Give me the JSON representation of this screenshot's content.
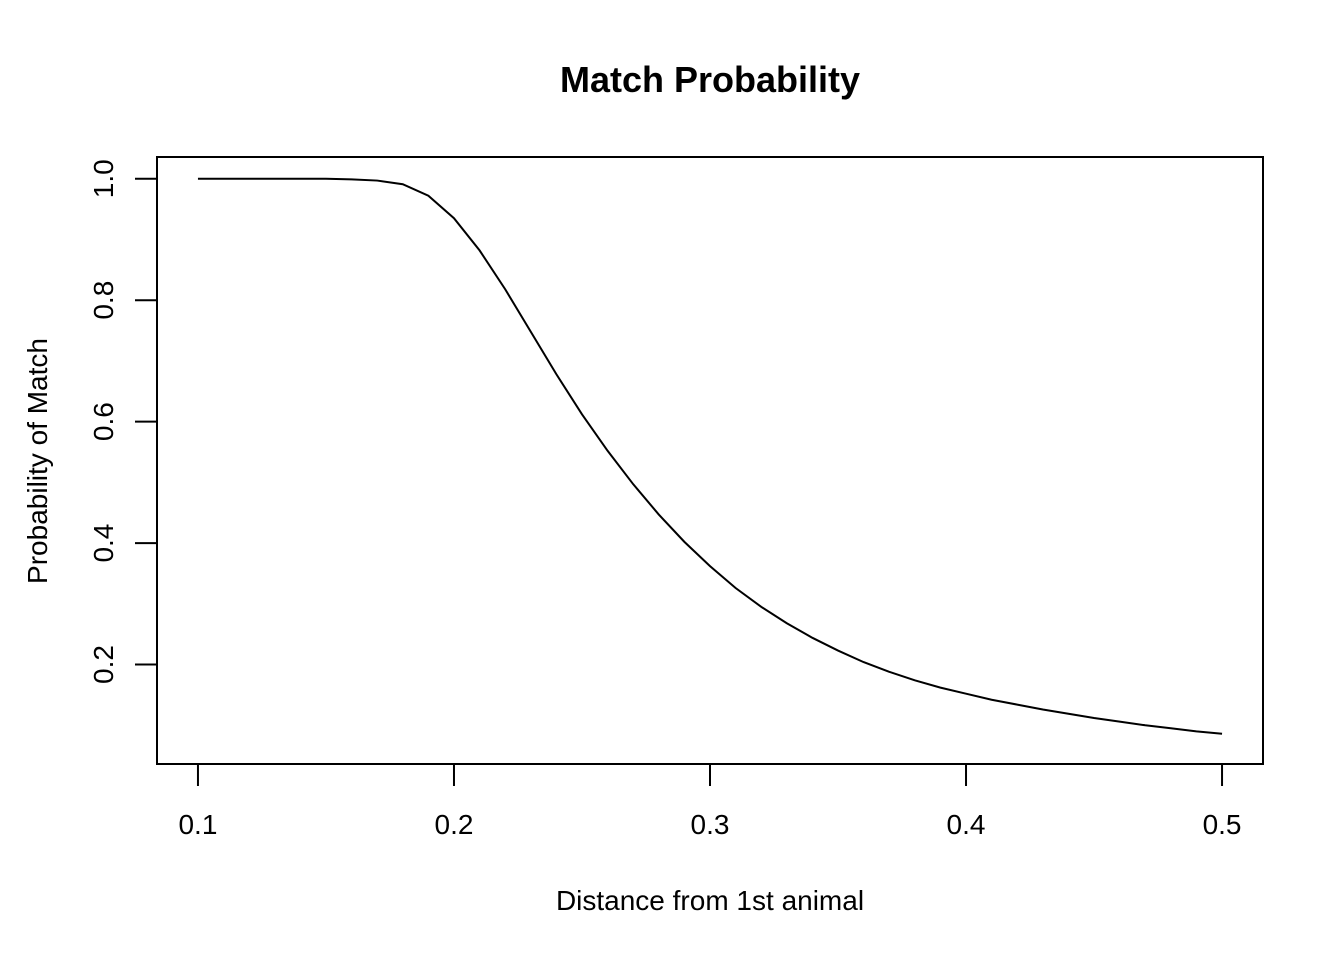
{
  "chart_data": {
    "type": "line",
    "title": "Match Probability",
    "xlabel": "Distance from 1st animal",
    "ylabel": "Probability of Match",
    "xlim": [
      0.084,
      0.516
    ],
    "ylim": [
      0.0362,
      1.0358
    ],
    "x_ticks": [
      0.1,
      0.2,
      0.3,
      0.4,
      0.5
    ],
    "x_tick_labels": [
      "0.1",
      "0.2",
      "0.3",
      "0.4",
      "0.5"
    ],
    "y_ticks": [
      0.2,
      0.4,
      0.6,
      0.8,
      1.0
    ],
    "y_tick_labels": [
      "0.2",
      "0.4",
      "0.6",
      "0.8",
      "1.0"
    ],
    "grid": false,
    "legend": "none",
    "line_color": "#000000",
    "series": [
      {
        "x": [
          0.1,
          0.11,
          0.12,
          0.13,
          0.14,
          0.15,
          0.16,
          0.17,
          0.18,
          0.19,
          0.2,
          0.21,
          0.22,
          0.23,
          0.24,
          0.25,
          0.26,
          0.27,
          0.28,
          0.29,
          0.3,
          0.31,
          0.32,
          0.33,
          0.34,
          0.35,
          0.36,
          0.37,
          0.38,
          0.39,
          0.4,
          0.41,
          0.42,
          0.43,
          0.44,
          0.45,
          0.46,
          0.47,
          0.48,
          0.49,
          0.5
        ],
        "values": [
          1.0,
          1.0,
          1.0,
          1.0,
          1.0,
          1.0,
          0.999,
          0.997,
          0.991,
          0.972,
          0.935,
          0.882,
          0.818,
          0.748,
          0.678,
          0.612,
          0.552,
          0.497,
          0.447,
          0.402,
          0.362,
          0.326,
          0.295,
          0.268,
          0.244,
          0.223,
          0.204,
          0.188,
          0.174,
          0.162,
          0.152,
          0.142,
          0.134,
          0.126,
          0.119,
          0.112,
          0.106,
          0.1,
          0.095,
          0.09,
          0.086
        ]
      }
    ]
  }
}
